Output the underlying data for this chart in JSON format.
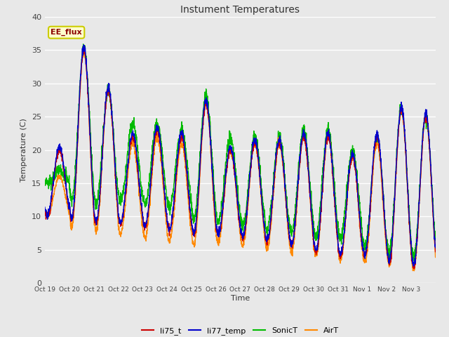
{
  "title": "Instument Temperatures",
  "xlabel": "Time",
  "ylabel": "Temperature (C)",
  "ylim": [
    0,
    40
  ],
  "yticks": [
    0,
    5,
    10,
    15,
    20,
    25,
    30,
    35,
    40
  ],
  "annotation_text": "EE_flux",
  "annotation_color": "#8B0000",
  "annotation_bg": "#FFFFCC",
  "annotation_border": "#CCCC00",
  "bg_color": "#E8E8E8",
  "line_colors": {
    "li75_t": "#CC0000",
    "li77_temp": "#0000CC",
    "SonicT": "#00BB00",
    "AirT": "#FF8800"
  },
  "x_tick_labels": [
    "Oct 19",
    "Oct 20",
    "Oct 21",
    "Oct 22",
    "Oct 23",
    "Oct 24",
    "Oct 25",
    "Oct 26",
    "Oct 27",
    "Oct 28",
    "Oct 29",
    "Oct 30",
    "Oct 31",
    "Nov 1",
    "Nov 2",
    "Nov 3"
  ],
  "num_days": 16,
  "points_per_day": 144
}
